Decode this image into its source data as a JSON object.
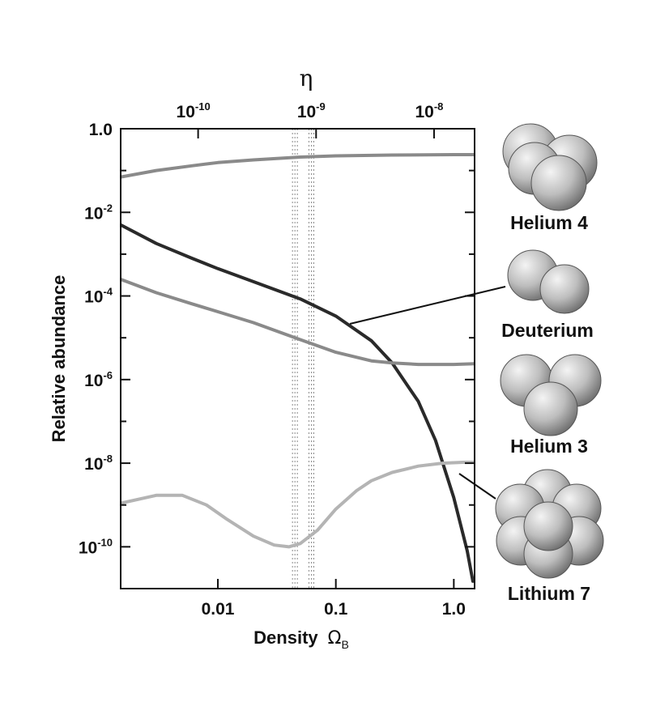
{
  "chart_data": {
    "type": "line",
    "xlabel": "Density",
    "xlabel_symbol": "Ω",
    "xlabel_sub": "B",
    "ylabel": "Relative abundance",
    "top_axis_label": "η",
    "x_scale": "log",
    "y_scale": "log",
    "xlim": [
      0.0015,
      1.5
    ],
    "ylim": [
      1e-11,
      1.0
    ],
    "grid": false,
    "x_ticks": [
      {
        "value": 0.01,
        "label": "0.01"
      },
      {
        "value": 0.1,
        "label": "0.1"
      },
      {
        "value": 1.0,
        "label": "1.0"
      }
    ],
    "top_ticks": [
      {
        "value": 0.0068,
        "base": "10",
        "exp": "-10"
      },
      {
        "value": 0.068,
        "base": "10",
        "exp": "-9"
      },
      {
        "value": 0.68,
        "base": "10",
        "exp": "-8"
      }
    ],
    "y_ticks": [
      {
        "value": 1.0,
        "label": "1.0",
        "base": "",
        "exp": ""
      },
      {
        "value": 0.01,
        "label": "",
        "base": "10",
        "exp": "-2"
      },
      {
        "value": 0.0001,
        "label": "",
        "base": "10",
        "exp": "-4"
      },
      {
        "value": 1e-06,
        "label": "",
        "base": "10",
        "exp": "-6"
      },
      {
        "value": 1e-08,
        "label": "",
        "base": "10",
        "exp": "-8"
      },
      {
        "value": 1e-10,
        "label": "",
        "base": "10",
        "exp": "-10"
      }
    ],
    "y_minor_ticks": [
      0.1,
      0.001,
      1e-05,
      1e-07,
      1e-09
    ],
    "highlight_band": [
      0.045,
      0.062
    ],
    "series": [
      {
        "name": "Helium 4",
        "color": "#8a8a8a",
        "x": [
          0.0015,
          0.003,
          0.006,
          0.01,
          0.02,
          0.05,
          0.1,
          0.3,
          1.0,
          1.5
        ],
        "y": [
          0.07,
          0.1,
          0.13,
          0.155,
          0.18,
          0.21,
          0.225,
          0.235,
          0.24,
          0.24
        ]
      },
      {
        "name": "Deuterium",
        "color": "#2a2a2a",
        "x": [
          0.0015,
          0.003,
          0.006,
          0.01,
          0.02,
          0.05,
          0.1,
          0.2,
          0.3,
          0.5,
          0.7,
          1.0,
          1.3,
          1.45
        ],
        "y": [
          0.005,
          0.0018,
          0.0008,
          0.00045,
          0.00022,
          8.5e-05,
          3.3e-05,
          8.5e-06,
          2.5e-06,
          3e-07,
          3.5e-08,
          1.5e-09,
          8e-11,
          1.5e-11
        ]
      },
      {
        "name": "Helium 3",
        "color": "#8a8a8a",
        "x": [
          0.0015,
          0.003,
          0.006,
          0.01,
          0.02,
          0.05,
          0.1,
          0.2,
          0.3,
          0.5,
          1.0,
          1.5
        ],
        "y": [
          0.00025,
          0.00012,
          6.5e-05,
          4.2e-05,
          2.3e-05,
          9e-06,
          4.5e-06,
          2.8e-06,
          2.5e-06,
          2.3e-06,
          2.3e-06,
          2.4e-06
        ]
      },
      {
        "name": "Lithium 7",
        "color": "#b4b4b4",
        "x": [
          0.0015,
          0.003,
          0.005,
          0.008,
          0.012,
          0.02,
          0.03,
          0.04,
          0.05,
          0.07,
          0.1,
          0.15,
          0.2,
          0.3,
          0.5,
          0.8,
          1.2,
          1.5
        ],
        "y": [
          1.1e-09,
          1.7e-09,
          1.7e-09,
          1e-09,
          4.5e-10,
          1.8e-10,
          1.1e-10,
          1e-10,
          1.2e-10,
          2.5e-10,
          8e-10,
          2.2e-09,
          3.8e-09,
          6e-09,
          8.5e-09,
          1e-08,
          1.05e-08,
          1.05e-08
        ]
      }
    ],
    "legend": [
      {
        "name": "Helium 4",
        "icon": "helium-4-nucleus-icon"
      },
      {
        "name": "Deuterium",
        "icon": "deuterium-nucleus-icon"
      },
      {
        "name": "Helium 3",
        "icon": "helium-3-nucleus-icon"
      },
      {
        "name": "Lithium 7",
        "icon": "lithium-7-nucleus-icon"
      }
    ]
  }
}
